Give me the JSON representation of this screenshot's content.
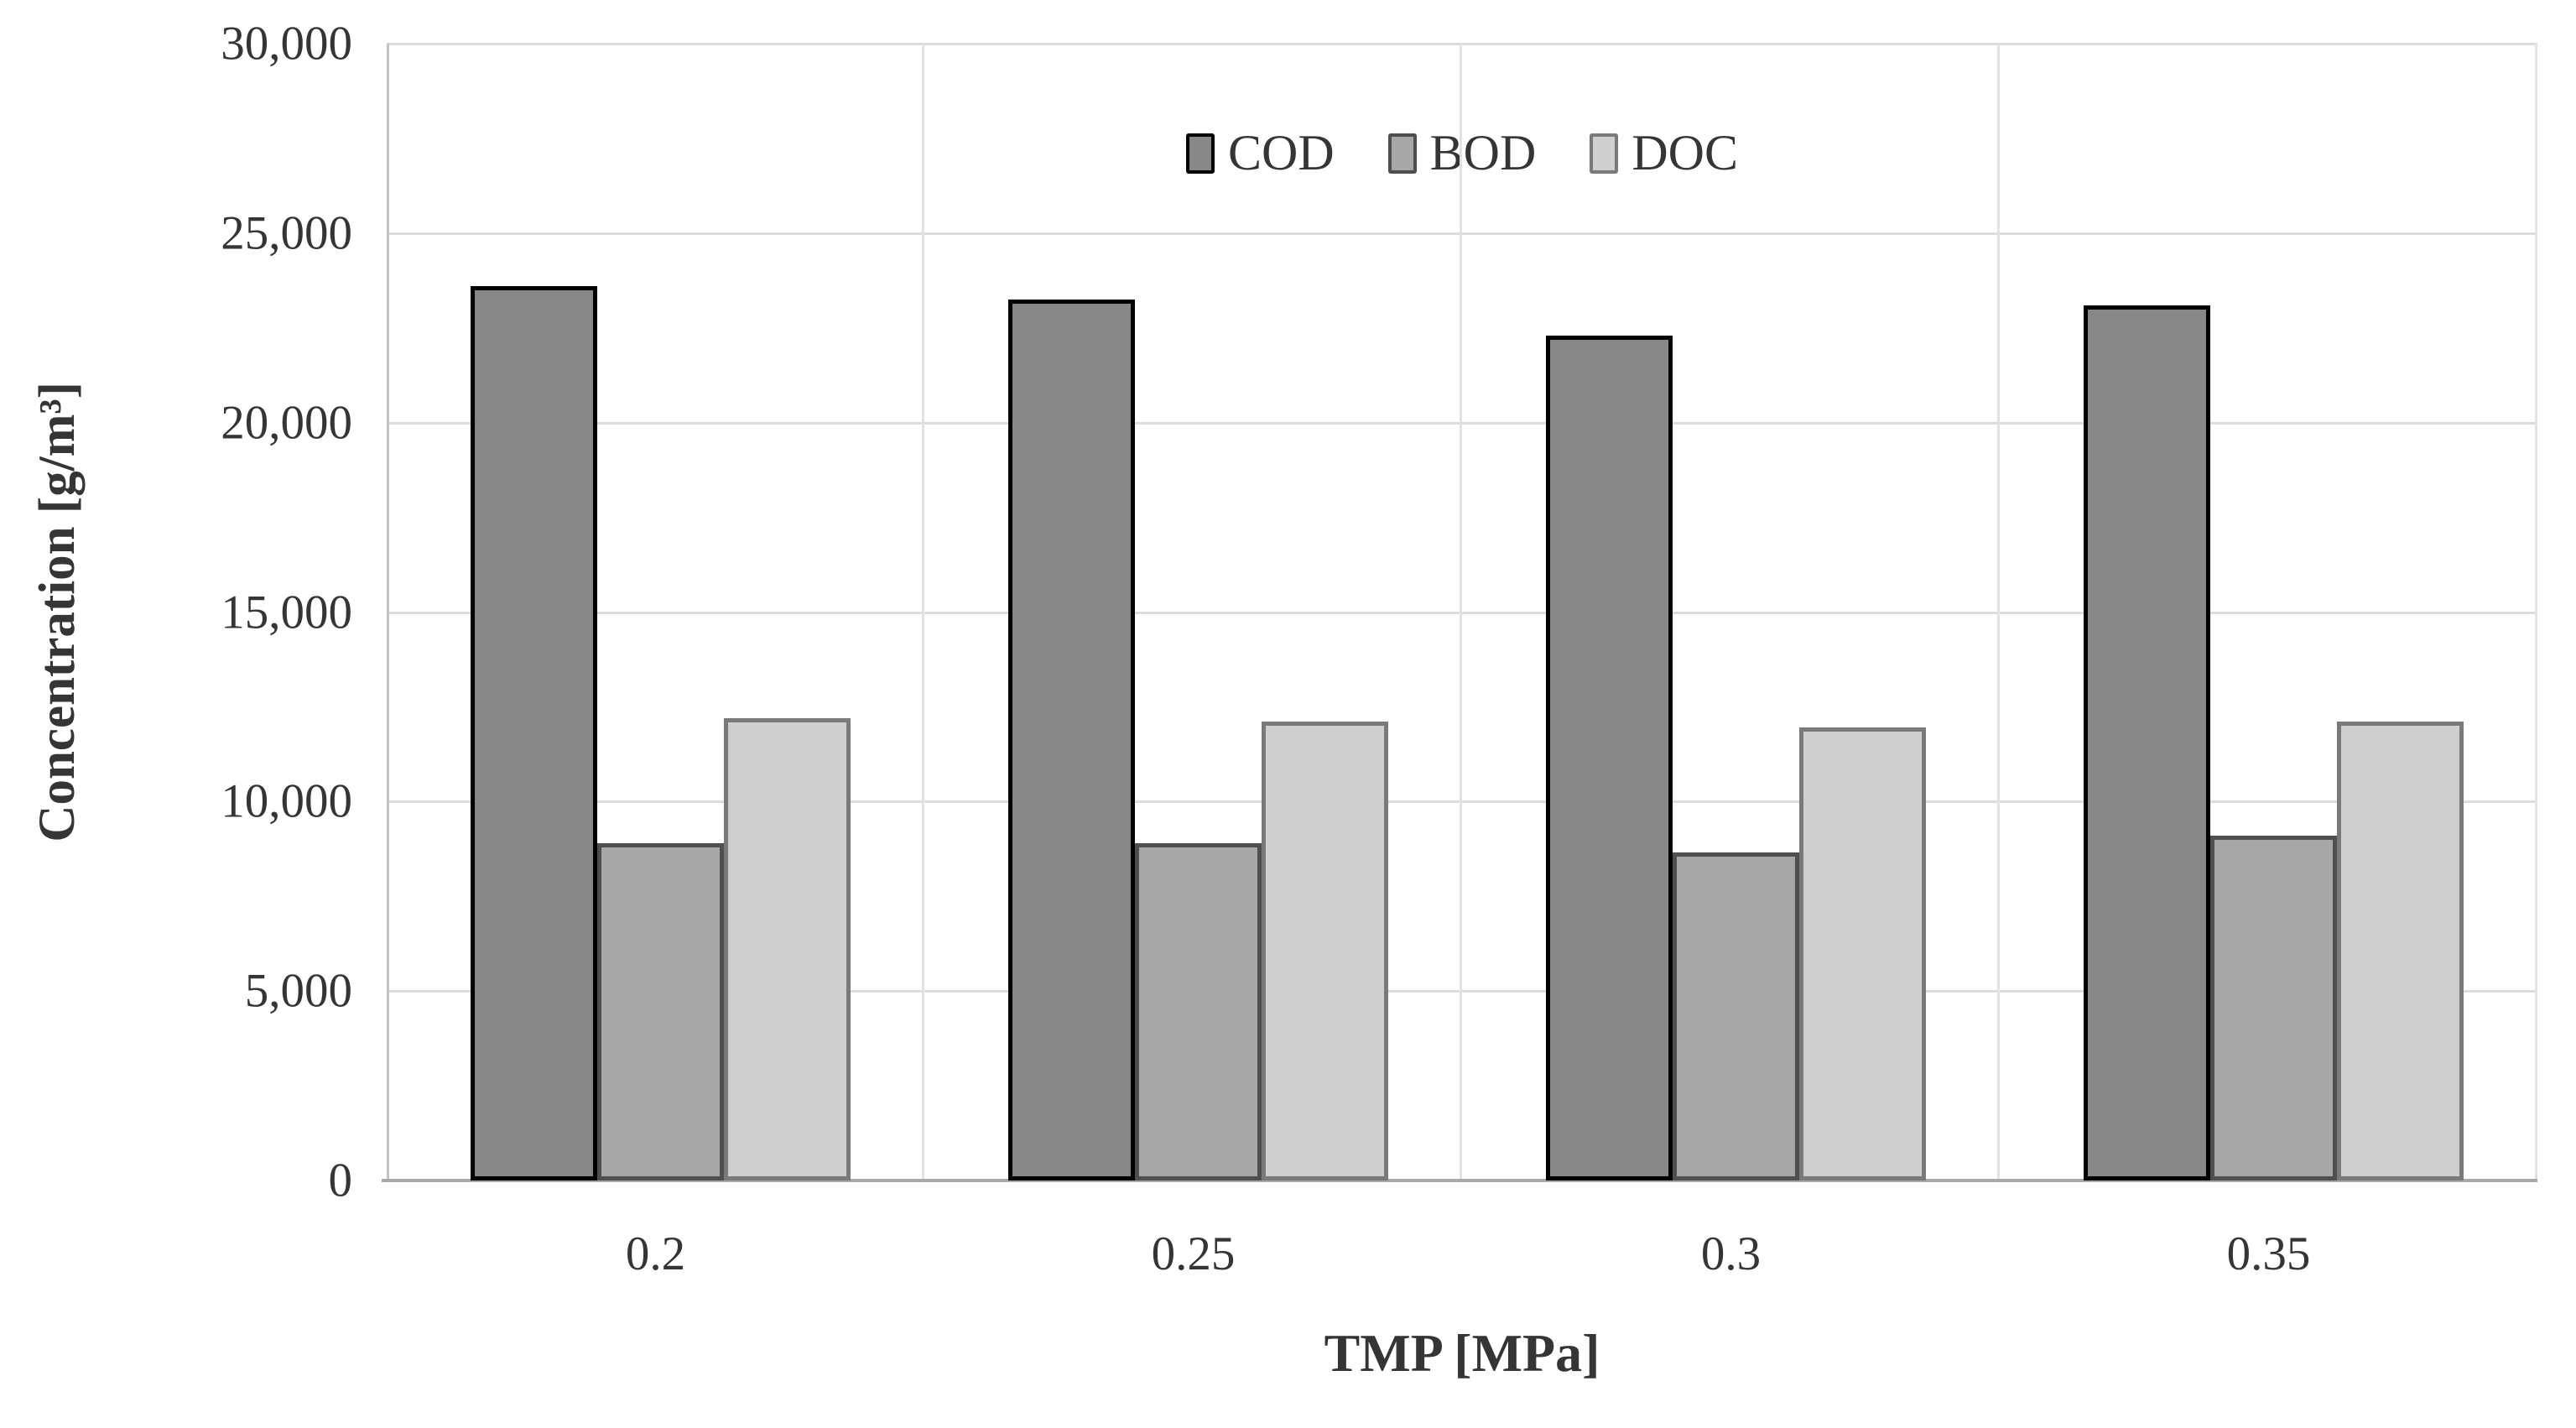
{
  "chart_data": {
    "type": "bar",
    "title": "",
    "categories": [
      "0.2",
      "0.25",
      "0.3",
      "0.35"
    ],
    "series": [
      {
        "name": "COD",
        "values": [
          23600,
          23250,
          22300,
          23100
        ],
        "fill": "#878787",
        "border": "#000000"
      },
      {
        "name": "BOD",
        "values": [
          8900,
          8900,
          8650,
          9100
        ],
        "fill": "#a7a7a7",
        "border": "#4f4f4f"
      },
      {
        "name": "DOC",
        "values": [
          12200,
          12100,
          11950,
          12100
        ],
        "fill": "#cfcfcf",
        "border": "#7a7a7a"
      }
    ],
    "xlabel": "TMP [MPa]",
    "ylabel": "Concentration [g/m³]",
    "ylim": [
      0,
      30000
    ],
    "ytick_step": 5000,
    "ytick_labels": [
      "0",
      "5,000",
      "10,000",
      "15,000",
      "20,000",
      "25,000",
      "30,000"
    ],
    "grid": "horizontal gridlines at each ytick plus vertical category-boundary gridlines",
    "legend_position": "top-center-inside",
    "colors": {
      "background": "#ffffff",
      "gridline": "#dcdcdc",
      "axis_line": "#a8a8a8",
      "text": "#353535"
    }
  }
}
